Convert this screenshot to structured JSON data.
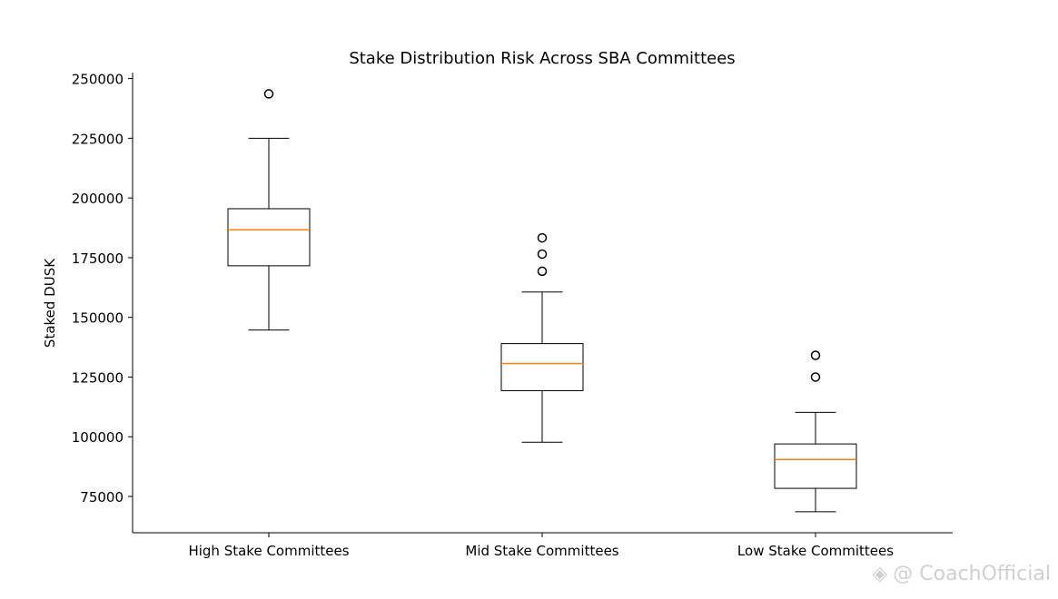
{
  "chart_data": {
    "type": "box",
    "title": "Stake Distribution Risk Across SBA Committees",
    "xlabel": "",
    "ylabel": "Staked DUSK",
    "ylim": [
      59800,
      252500
    ],
    "yticks": [
      75000,
      100000,
      125000,
      150000,
      175000,
      200000,
      225000,
      250000
    ],
    "ytick_labels": [
      "75000",
      "100000",
      "125000",
      "150000",
      "175000",
      "200000",
      "225000",
      "250000"
    ],
    "categories": [
      "High Stake Committees",
      "Mid Stake Committees",
      "Low Stake Committees"
    ],
    "boxes": [
      {
        "name": "High Stake Committees",
        "whisker_low": 144700,
        "q1": 171600,
        "median": 186700,
        "q3": 195500,
        "whisker_high": 225000,
        "outliers": [
          243600
        ]
      },
      {
        "name": "Mid Stake Committees",
        "whisker_low": 97700,
        "q1": 119300,
        "median": 130700,
        "q3": 139000,
        "whisker_high": 160600,
        "outliers": [
          169300,
          176500,
          183300
        ]
      },
      {
        "name": "Low Stake Committees",
        "whisker_low": 68600,
        "q1": 78400,
        "median": 90500,
        "q3": 97000,
        "whisker_high": 110200,
        "outliers": [
          125000,
          134100
        ]
      }
    ],
    "grid": false,
    "colors": {
      "box": "#000000",
      "median": "#ff7f0e"
    }
  },
  "watermark": "@ CoachOfficial"
}
